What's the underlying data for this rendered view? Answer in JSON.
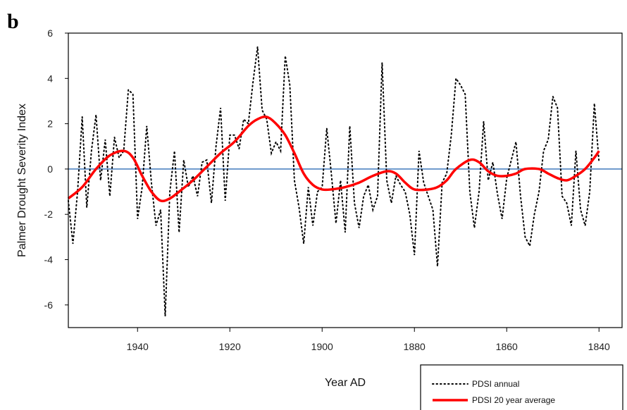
{
  "chart_data": {
    "type": "line",
    "panel_label": "b",
    "title": "",
    "xlabel": "Year AD",
    "ylabel": "Palmer Drought Severity Index",
    "x_reversed": true,
    "xlim": [
      1835,
      1955
    ],
    "ylim": [
      -7,
      6
    ],
    "x_ticks": [
      1940,
      1920,
      1900,
      1880,
      1860,
      1840
    ],
    "y_ticks": [
      6,
      4,
      2,
      0,
      -2,
      -4,
      -6
    ],
    "grid": false,
    "reference_line": {
      "y": 0,
      "color": "#6b98cc"
    },
    "legend": {
      "position": "bottom-right"
    },
    "series": [
      {
        "name": "PDSI annual",
        "style": "dotted",
        "color": "#000000",
        "x": [
          1955,
          1954,
          1953,
          1952,
          1951,
          1950,
          1949,
          1948,
          1947,
          1946,
          1945,
          1944,
          1943,
          1942,
          1941,
          1940,
          1939,
          1938,
          1937,
          1936,
          1935,
          1934,
          1933,
          1932,
          1931,
          1930,
          1929,
          1928,
          1927,
          1926,
          1925,
          1924,
          1923,
          1922,
          1921,
          1920,
          1919,
          1918,
          1917,
          1916,
          1915,
          1914,
          1913,
          1912,
          1911,
          1910,
          1909,
          1908,
          1907,
          1906,
          1905,
          1904,
          1903,
          1902,
          1901,
          1900,
          1899,
          1898,
          1897,
          1896,
          1895,
          1894,
          1893,
          1892,
          1891,
          1890,
          1889,
          1888,
          1887,
          1886,
          1885,
          1884,
          1883,
          1882,
          1881,
          1880,
          1879,
          1878,
          1877,
          1876,
          1875,
          1874,
          1873,
          1872,
          1871,
          1870,
          1869,
          1868,
          1867,
          1866,
          1865,
          1864,
          1863,
          1862,
          1861,
          1860,
          1859,
          1858,
          1857,
          1856,
          1855,
          1854,
          1853,
          1852,
          1851,
          1850,
          1849,
          1848,
          1847,
          1846,
          1845,
          1844,
          1843,
          1842,
          1841,
          1840
        ],
        "values": [
          -1.4,
          -3.3,
          -1.0,
          2.3,
          -1.7,
          0.8,
          2.4,
          -0.5,
          1.3,
          -1.2,
          1.4,
          0.5,
          0.8,
          3.5,
          3.3,
          -2.2,
          -0.8,
          1.9,
          -0.6,
          -2.5,
          -1.8,
          -6.5,
          -1.0,
          0.8,
          -2.8,
          0.4,
          -0.8,
          -0.3,
          -1.2,
          0.3,
          0.4,
          -1.5,
          1.0,
          2.7,
          -1.4,
          1.5,
          1.5,
          0.9,
          2.2,
          2.0,
          3.8,
          5.4,
          2.6,
          2.2,
          0.7,
          1.2,
          0.8,
          5.0,
          3.7,
          -0.5,
          -1.7,
          -3.3,
          -0.8,
          -2.5,
          -1.0,
          -0.8,
          1.8,
          -0.2,
          -2.4,
          -0.5,
          -2.8,
          1.9,
          -1.5,
          -2.6,
          -1.2,
          -0.7,
          -1.8,
          -1.2,
          4.7,
          -0.5,
          -1.5,
          -0.3,
          -0.7,
          -1.0,
          -2.0,
          -3.8,
          0.8,
          -0.6,
          -1.2,
          -1.8,
          -4.3,
          -0.6,
          -0.2,
          1.5,
          4.0,
          3.7,
          3.3,
          -1.0,
          -2.6,
          -1.0,
          2.1,
          -0.5,
          0.3,
          -1.1,
          -2.2,
          -0.4,
          0.4,
          1.2,
          -1.2,
          -3.0,
          -3.4,
          -2.0,
          -1.0,
          0.8,
          1.3,
          3.2,
          2.7,
          -1.2,
          -1.5,
          -2.5,
          0.8,
          -1.8,
          -2.5,
          -1.0,
          2.9,
          0.3
        ]
      },
      {
        "name": "PDSI 20 year average",
        "style": "solid",
        "color": "#ff0000",
        "x": [
          1955,
          1952,
          1949,
          1946,
          1943,
          1941,
          1939,
          1937,
          1935,
          1933,
          1931,
          1928,
          1925,
          1922,
          1919,
          1916,
          1914,
          1912,
          1910,
          1908,
          1906,
          1904,
          1902,
          1900,
          1898,
          1895,
          1892,
          1889,
          1886,
          1884,
          1882,
          1880,
          1877,
          1875,
          1873,
          1871,
          1868,
          1866,
          1864,
          1862,
          1860,
          1858,
          1856,
          1853,
          1851,
          1849,
          1847,
          1845,
          1843,
          1841,
          1840
        ],
        "values": [
          -1.3,
          -0.8,
          0.0,
          0.6,
          0.8,
          0.5,
          -0.3,
          -1.0,
          -1.4,
          -1.3,
          -1.0,
          -0.5,
          0.1,
          0.7,
          1.2,
          1.9,
          2.2,
          2.3,
          2.0,
          1.5,
          0.7,
          -0.2,
          -0.7,
          -0.9,
          -0.9,
          -0.8,
          -0.6,
          -0.3,
          -0.1,
          -0.2,
          -0.6,
          -0.9,
          -0.9,
          -0.8,
          -0.5,
          0.0,
          0.4,
          0.3,
          -0.1,
          -0.3,
          -0.3,
          -0.2,
          0.0,
          0.0,
          -0.2,
          -0.4,
          -0.5,
          -0.3,
          0.0,
          0.5,
          0.8
        ]
      }
    ]
  }
}
